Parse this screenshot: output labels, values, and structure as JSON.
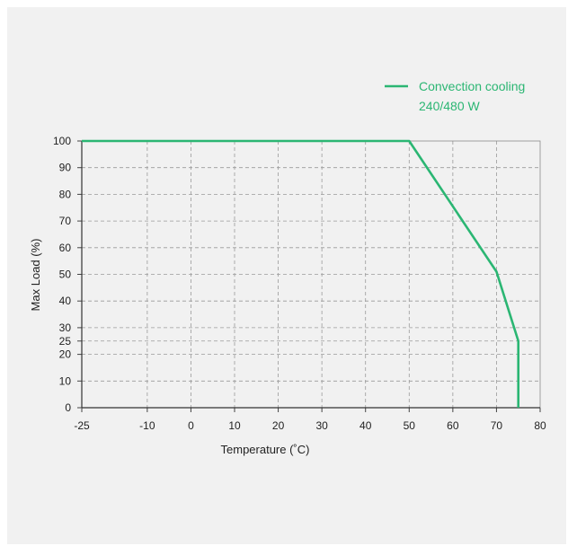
{
  "chart_data": {
    "type": "line",
    "title": "",
    "xlabel": "Temperature (˚C)",
    "ylabel": "Max Load (%)",
    "xlim": [
      -25,
      80
    ],
    "ylim": [
      0,
      100
    ],
    "x_ticks": [
      -25,
      -10,
      0,
      10,
      20,
      30,
      40,
      50,
      60,
      70,
      80
    ],
    "y_ticks": [
      0,
      10,
      20,
      25,
      30,
      40,
      50,
      60,
      70,
      80,
      90,
      100
    ],
    "grid": true,
    "grid_style": "dashed",
    "legend_position": "top-right",
    "series": [
      {
        "name": "Convection cooling",
        "name_line2": "240/480 W",
        "color": "#2bb673",
        "x": [
          -25,
          50,
          70,
          75,
          75
        ],
        "y": [
          100,
          100,
          51,
          25,
          0
        ]
      }
    ]
  }
}
